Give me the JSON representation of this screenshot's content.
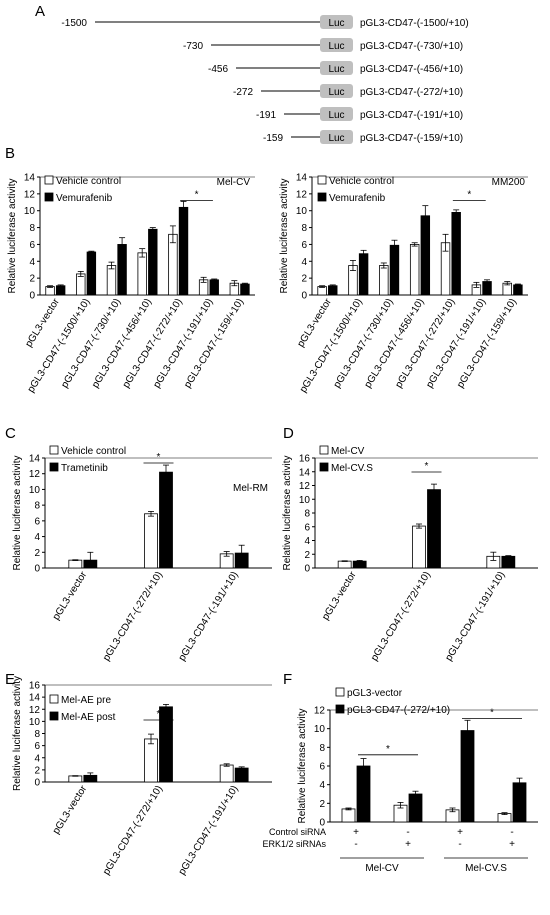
{
  "panels": {
    "A": "A",
    "B": "B",
    "C": "C",
    "D": "D",
    "E": "E",
    "F": "F"
  },
  "colors": {
    "open_bar": "#ffffff",
    "filled_bar": "#000000",
    "luc_box": "#bfbfbf",
    "axis": "#000000"
  },
  "constructs": [
    {
      "start": "-1500",
      "box": "Luc",
      "name": "pGL3-CD47-(-1500/+10)"
    },
    {
      "start": "-730",
      "box": "Luc",
      "name": "pGL3-CD47-(-730/+10)"
    },
    {
      "start": "-456",
      "box": "Luc",
      "name": "pGL3-CD47-(-456/+10)"
    },
    {
      "start": "-272",
      "box": "Luc",
      "name": "pGL3-CD47-(-272/+10)"
    },
    {
      "start": "-191",
      "box": "Luc",
      "name": "pGL3-CD47-(-191/+10)"
    },
    {
      "start": "-159",
      "box": "Luc",
      "name": "pGL3-CD47-(-159/+10)"
    }
  ],
  "chart_data": [
    {
      "panel": "B-left",
      "type": "bar",
      "title": "Mel-CV",
      "ylabel": "Relative luciferase activity",
      "ylim": [
        0,
        14
      ],
      "yticks": [
        "0",
        "2",
        "4",
        "6",
        "8",
        "10",
        "12",
        "14"
      ],
      "categories": [
        "pGL3-vector",
        "pGL3-CD47-(-1500/+10)",
        "pGL3-CD47-(-730/+10)",
        "pGL3-CD47-(-456/+10)",
        "pGL3-CD47-(-272/+10)",
        "pGL3-CD47-(-191/+10)",
        "pGL3-CD47-(-159/+10)"
      ],
      "series": [
        {
          "name": "Vehicle control",
          "values": [
            1.0,
            2.5,
            3.5,
            5.0,
            7.2,
            1.8,
            1.4
          ],
          "errors": [
            0.1,
            0.3,
            0.4,
            0.5,
            1.0,
            0.3,
            0.3
          ]
        },
        {
          "name": "Vemurafenib",
          "values": [
            1.1,
            5.1,
            6.0,
            7.8,
            10.4,
            1.8,
            1.3
          ],
          "errors": [
            0.1,
            0.1,
            0.8,
            0.2,
            0.7,
            0.1,
            0.1
          ]
        }
      ],
      "significance": {
        "label": "*",
        "from": 4,
        "to": 5
      }
    },
    {
      "panel": "B-right",
      "type": "bar",
      "title": "MM200",
      "ylabel": "Relative luciferase activity",
      "ylim": [
        0,
        14
      ],
      "yticks": [
        "0",
        "2",
        "4",
        "6",
        "8",
        "10",
        "12",
        "14"
      ],
      "categories": [
        "pGL3-vector",
        "pGL3-CD47-(-1500/+10)",
        "pGL3-CD47-(-730/+10)",
        "pGL3-CD47-(-456/+10)",
        "pGL3-CD47-(-272/+10)",
        "pGL3-CD47-(-191/+10)",
        "pGL3-CD47-(-159/+10)"
      ],
      "series": [
        {
          "name": "Vehicle control",
          "values": [
            1.0,
            3.5,
            3.5,
            6.0,
            6.2,
            1.2,
            1.4
          ],
          "errors": [
            0.1,
            0.6,
            0.3,
            0.2,
            1.0,
            0.3,
            0.2
          ]
        },
        {
          "name": "Vemurafenib",
          "values": [
            1.1,
            4.9,
            5.9,
            9.4,
            9.8,
            1.6,
            1.2
          ],
          "errors": [
            0.1,
            0.4,
            0.6,
            1.2,
            0.3,
            0.2,
            0.1
          ]
        }
      ],
      "significance": {
        "label": "*",
        "from": 4,
        "to": 5
      }
    },
    {
      "panel": "C",
      "type": "bar",
      "title": "Mel-RM",
      "ylabel": "Relative luciferase activity",
      "ylim": [
        0,
        14
      ],
      "yticks": [
        "0",
        "2",
        "4",
        "6",
        "8",
        "10",
        "12",
        "14"
      ],
      "categories": [
        "pGL3-vector",
        "pGL3-CD47-(-272/+10)",
        "pGL3-CD47-(-191/+10)"
      ],
      "series": [
        {
          "name": "Vehicle control",
          "values": [
            1.0,
            6.9,
            1.8
          ],
          "errors": [
            0.05,
            0.3,
            0.3
          ]
        },
        {
          "name": "Trametinib",
          "values": [
            1.0,
            12.2,
            1.9
          ],
          "errors": [
            1.0,
            0.9,
            1.0
          ]
        }
      ],
      "significance": {
        "label": "*",
        "from": 1,
        "to": 1
      }
    },
    {
      "panel": "D",
      "type": "bar",
      "title": "",
      "ylabel": "Relative luciferase activity",
      "ylim": [
        0,
        16
      ],
      "yticks": [
        "0",
        "2",
        "4",
        "6",
        "8",
        "10",
        "12",
        "14",
        "16"
      ],
      "categories": [
        "pGL3-vector",
        "pGL3-CD47-(-272/+10)",
        "pGL3-CD47-(-191/+10)"
      ],
      "series": [
        {
          "name": "Mel-CV",
          "values": [
            1.0,
            6.1,
            1.7
          ],
          "errors": [
            0.05,
            0.3,
            0.6
          ]
        },
        {
          "name": "Mel-CV.S",
          "values": [
            1.0,
            11.4,
            1.7
          ],
          "errors": [
            0.1,
            0.8,
            0.1
          ]
        }
      ],
      "significance": {
        "label": "*",
        "from": 1,
        "to": 1
      }
    },
    {
      "panel": "E",
      "type": "bar",
      "title": "",
      "ylabel": "Relative luciferase activity",
      "ylim": [
        0,
        16
      ],
      "yticks": [
        "0",
        "2",
        "4",
        "6",
        "8",
        "10",
        "12",
        "14",
        "16"
      ],
      "categories": [
        "pGL3-vector",
        "pGL3-CD47-(-272/+10)",
        "pGL3-CD47-(-191/+10)"
      ],
      "series": [
        {
          "name": "Mel-AE pre",
          "values": [
            1.0,
            7.1,
            2.8
          ],
          "errors": [
            0.05,
            0.8,
            0.2
          ]
        },
        {
          "name": "Mel-AE post",
          "values": [
            1.1,
            12.4,
            2.3
          ],
          "errors": [
            0.4,
            0.4,
            0.2
          ]
        }
      ],
      "significance": {
        "label": "*",
        "from": 1,
        "to": 1
      }
    },
    {
      "panel": "F",
      "type": "bar",
      "title": "",
      "ylabel": "Relative luciferase activity",
      "ylim": [
        0,
        12
      ],
      "yticks": [
        "0",
        "2",
        "4",
        "6",
        "8",
        "10",
        "12"
      ],
      "categories": [
        "Control siRNA + / ERK1/2 siRNAs -",
        "Control siRNA - / ERK1/2 siRNAs +",
        "Control siRNA + / ERK1/2 siRNAs -",
        "Control siRNA - / ERK1/2 siRNAs +"
      ],
      "series": [
        {
          "name": "pGL3-vector",
          "values": [
            1.4,
            1.8,
            1.3,
            0.9
          ],
          "errors": [
            0.1,
            0.3,
            0.2,
            0.1
          ]
        },
        {
          "name": "pGL3-CD47-(-272/+10)",
          "values": [
            6.0,
            3.0,
            9.8,
            4.2
          ],
          "errors": [
            0.8,
            0.3,
            1.1,
            0.5
          ]
        }
      ],
      "row_labels": [
        "Control siRNA",
        "ERK1/2 siRNAs"
      ],
      "row_signs": [
        [
          "+",
          "-",
          "+",
          "-"
        ],
        [
          "-",
          "+",
          "-",
          "+"
        ]
      ],
      "groups": [
        "Mel-CV",
        "Mel-CV.S"
      ],
      "significance": [
        {
          "label": "*",
          "from": 0,
          "to": 1
        },
        {
          "label": "*",
          "from": 2,
          "to": 3
        }
      ]
    }
  ]
}
